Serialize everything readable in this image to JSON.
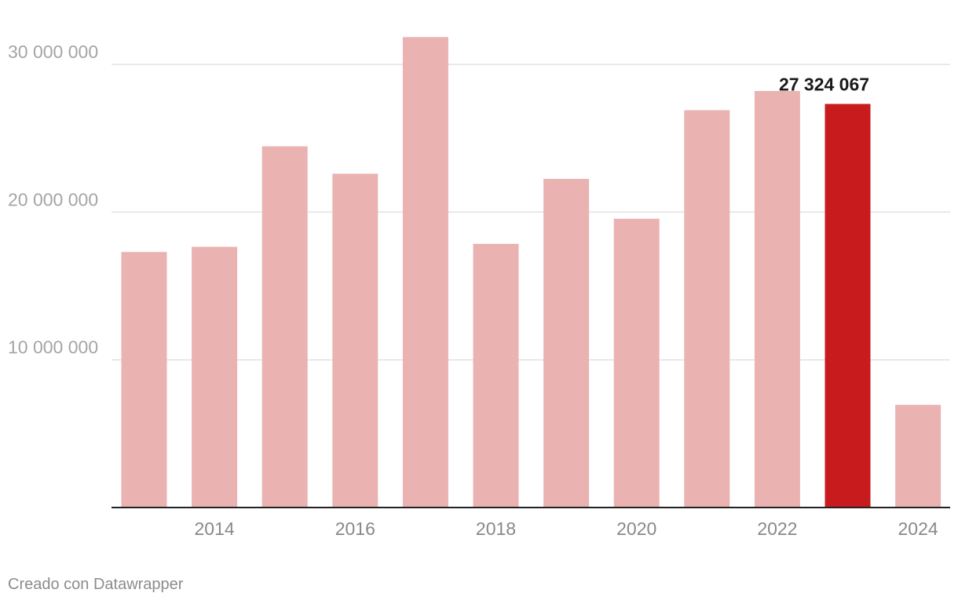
{
  "chart_data": {
    "type": "bar",
    "categories": [
      "2013",
      "2014",
      "2015",
      "2016",
      "2017",
      "2018",
      "2019",
      "2020",
      "2021",
      "2022",
      "2023",
      "2024"
    ],
    "values": [
      17300000,
      17650000,
      24450000,
      22600000,
      31850000,
      17850000,
      22250000,
      19550000,
      26900000,
      28200000,
      27324067,
      6950000
    ],
    "ylim": [
      0,
      35000000
    ],
    "yticks": [
      10000000,
      20000000,
      30000000
    ],
    "ytick_labels": [
      "10 000 000",
      "20 000 000",
      "30 000 000"
    ],
    "xtick_labels": [
      "2014",
      "2016",
      "2018",
      "2020",
      "2022",
      "2024"
    ],
    "highlight_index": 10,
    "data_labels": [
      {
        "index": 10,
        "text": "27 324 067"
      }
    ],
    "colors": {
      "bar": "#ebb2b2",
      "highlight": "#c81b1e",
      "grid": "#e2e2e2",
      "baseline": "#222222"
    },
    "grid": true
  },
  "footer": {
    "credit": "Creado con Datawrapper"
  }
}
